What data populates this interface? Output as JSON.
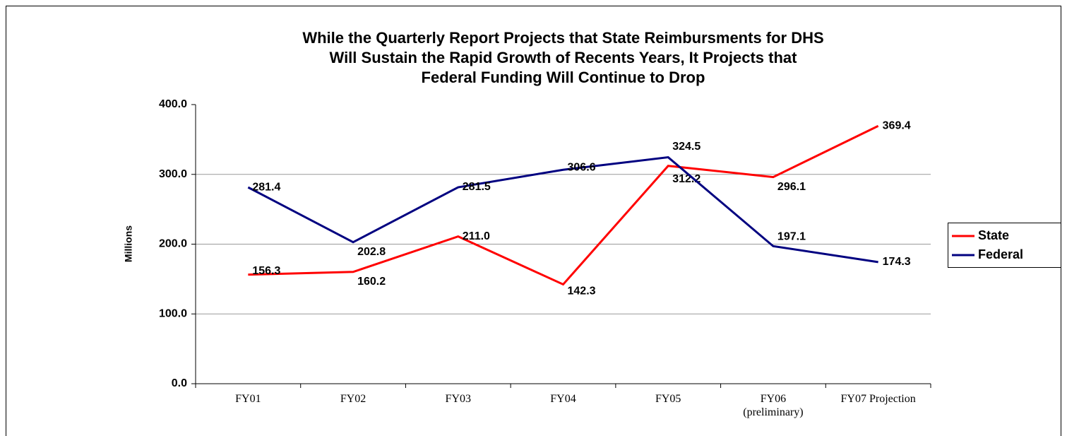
{
  "chart_data": {
    "type": "line",
    "title": "While the Quarterly Report Projects that State Reimbursments for DHS\nWill Sustain the Rapid Growth of Recents Years, It Projects that\nFederal Funding Will Continue to Drop",
    "y_label": "Millions",
    "categories": [
      "FY01",
      "FY02",
      "FY03",
      "FY04",
      "FY05",
      "FY06\n(preliminary)",
      "FY07 Projection"
    ],
    "series": [
      {
        "name": "State",
        "color": "#ff0000",
        "values": [
          156.3,
          160.2,
          211.0,
          142.3,
          312.2,
          296.1,
          369.4
        ],
        "value_labels": [
          "156.3",
          "160.2",
          "211.0",
          "142.3",
          "312.2",
          "296.1",
          "369.4"
        ]
      },
      {
        "name": "Federal",
        "color": "#000080",
        "values": [
          281.4,
          202.8,
          281.5,
          306.6,
          324.5,
          197.1,
          174.3
        ],
        "value_labels": [
          "281.4",
          "202.8",
          "281.5",
          "306.6",
          "324.5",
          "197.1",
          "174.3"
        ]
      }
    ],
    "ylim": [
      0,
      400
    ],
    "yticks": [
      {
        "value": 0,
        "label": "0.0"
      },
      {
        "value": 100,
        "label": "100.0"
      },
      {
        "value": 200,
        "label": "200.0"
      },
      {
        "value": 300,
        "label": "300.0"
      },
      {
        "value": 400,
        "label": "400.0"
      }
    ],
    "grid": true,
    "legend": "right"
  }
}
